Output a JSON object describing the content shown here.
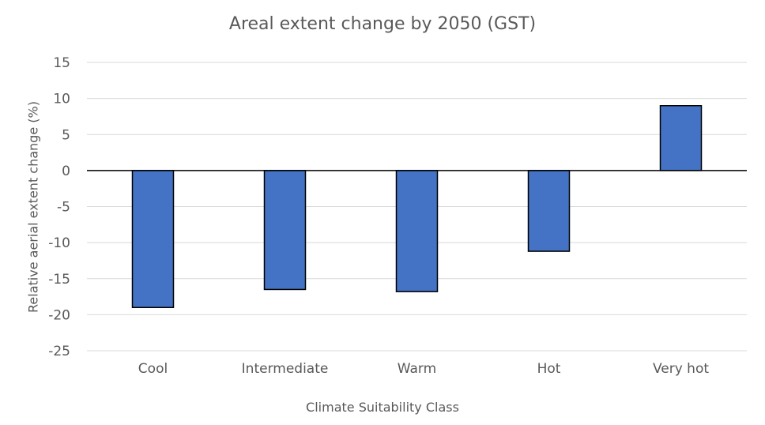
{
  "chart_data": {
    "type": "bar",
    "title": "Areal extent change by 2050 (GST)",
    "xlabel": "Climate Suitability Class",
    "ylabel": "Relative aerial extent change (%)",
    "categories": [
      "Cool",
      "Intermediate",
      "Warm",
      "Hot",
      "Very hot"
    ],
    "values": [
      -19.0,
      -16.5,
      -16.8,
      -11.2,
      9.0
    ],
    "ylim": [
      -25,
      15
    ],
    "yticks": [
      15,
      10,
      5,
      0,
      -5,
      -10,
      -15,
      -20,
      -25
    ],
    "grid": true,
    "legend": "none",
    "colors": {
      "bar_fill": "#4472C4",
      "bar_stroke": "#000000",
      "grid": "#D9D9D9",
      "zero_line": "#000000",
      "text": "#595959"
    }
  }
}
